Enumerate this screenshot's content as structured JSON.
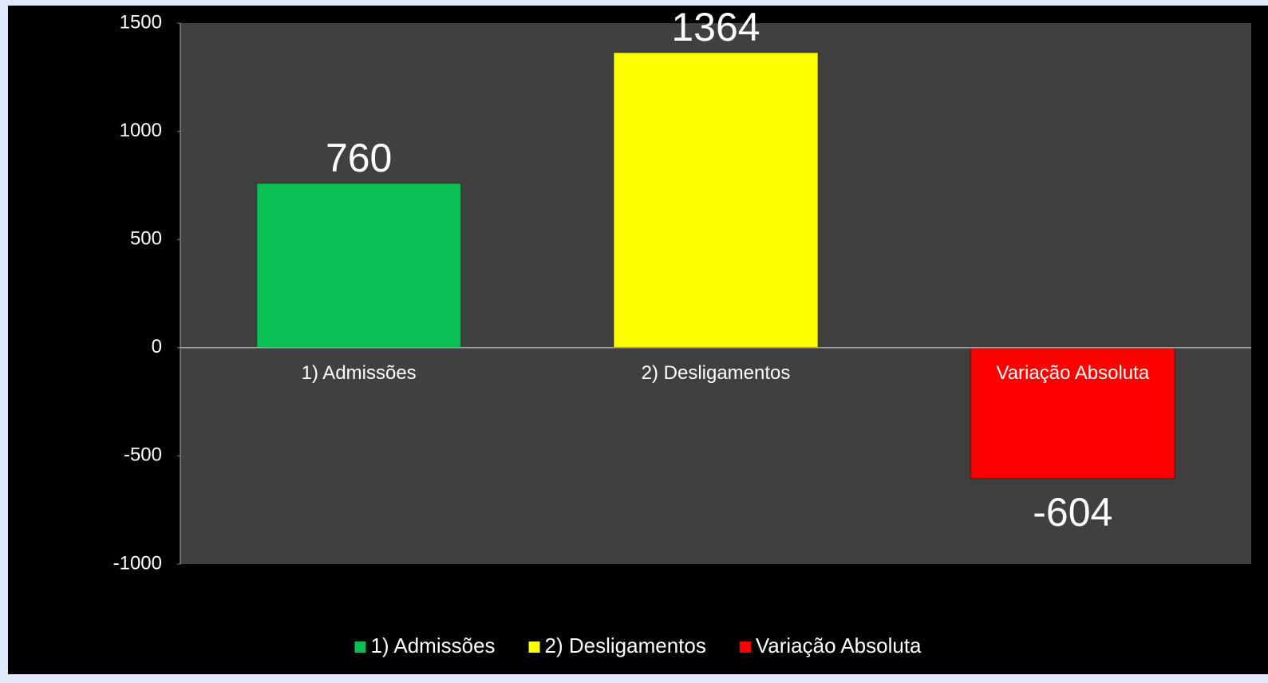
{
  "chart_data": {
    "type": "bar",
    "categories": [
      "1) Admissões",
      "2) Desligamentos",
      "Variação Absoluta"
    ],
    "values": [
      760,
      1364,
      -604
    ],
    "colors": [
      "#0abf53",
      "#ffff00",
      "#ff0000"
    ],
    "ylim": [
      -1000,
      1500
    ],
    "yticks": [
      -1000,
      -500,
      0,
      500,
      1000,
      1500
    ],
    "legend": "bottom"
  }
}
